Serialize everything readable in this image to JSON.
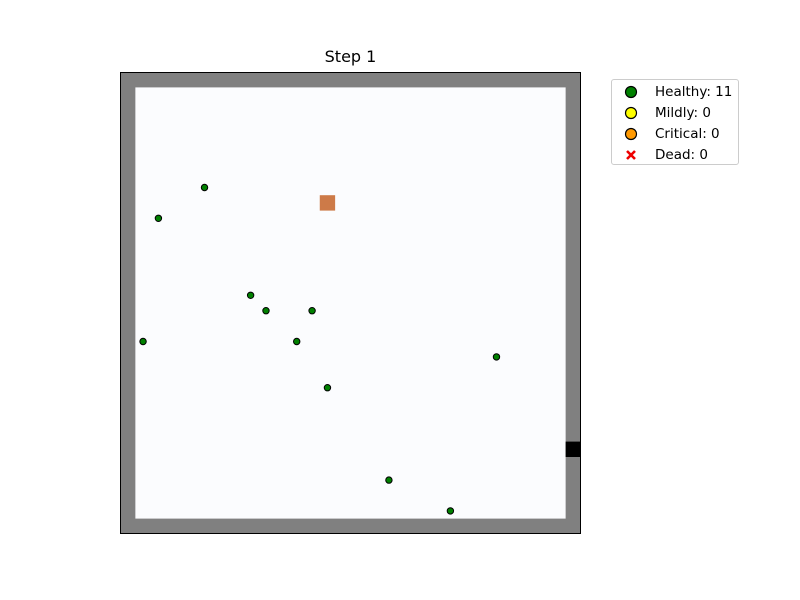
{
  "title": "Step 1",
  "colors": {
    "wall": "#808080",
    "floor": "#fbfcfe",
    "door": "#000000",
    "hazard": "#cd7a48",
    "healthy": "#008000",
    "mildly": "#ffff00",
    "critical": "#ff9900",
    "dead": "#ee0000"
  },
  "legend": [
    {
      "label": "Healthy: 11",
      "marker": "circle",
      "color": "#008000"
    },
    {
      "label": "Mildly: 0",
      "marker": "circle",
      "color": "#ffff00"
    },
    {
      "label": "Critical: 0",
      "marker": "circle",
      "color": "#ff9900"
    },
    {
      "label": "Dead: 0",
      "marker": "cross",
      "color": "#ee0000"
    }
  ],
  "chart_data": {
    "type": "scatter",
    "title": "Step 1",
    "xlim": [
      0,
      30
    ],
    "ylim": [
      0,
      30
    ],
    "grid": false,
    "legend_position": "outside-top-right",
    "walls": "perimeter",
    "door": {
      "x": 29.5,
      "y": 5.5,
      "side": "right"
    },
    "hazard": {
      "x": 13.5,
      "y": 21.5
    },
    "series": [
      {
        "name": "Healthy: 11",
        "color": "#008000",
        "points": [
          {
            "x": 5.5,
            "y": 22.5
          },
          {
            "x": 2.5,
            "y": 20.5
          },
          {
            "x": 8.5,
            "y": 15.5
          },
          {
            "x": 9.5,
            "y": 14.5
          },
          {
            "x": 12.5,
            "y": 14.5
          },
          {
            "x": 1.5,
            "y": 12.5
          },
          {
            "x": 11.5,
            "y": 12.5
          },
          {
            "x": 24.5,
            "y": 11.5
          },
          {
            "x": 13.5,
            "y": 9.5
          },
          {
            "x": 17.5,
            "y": 3.5
          },
          {
            "x": 21.5,
            "y": 1.5
          }
        ]
      },
      {
        "name": "Mildly: 0",
        "color": "#ffff00",
        "points": []
      },
      {
        "name": "Critical: 0",
        "color": "#ff9900",
        "points": []
      },
      {
        "name": "Dead: 0",
        "color": "#ee0000",
        "points": []
      }
    ]
  }
}
